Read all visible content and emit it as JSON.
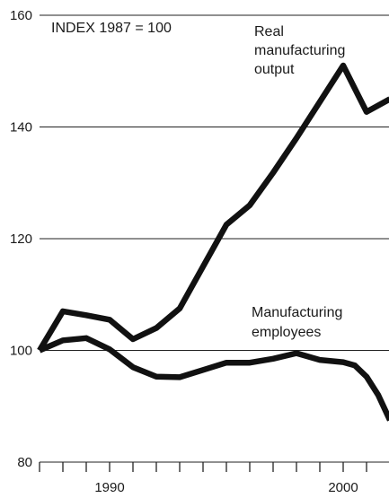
{
  "chart_data": {
    "type": "line",
    "title": "",
    "index_note": "INDEX 1987 = 100",
    "xlabel": "",
    "ylabel": "",
    "xlim": [
      1987,
      2002
    ],
    "ylim": [
      80,
      160
    ],
    "y_ticks": [
      80,
      100,
      120,
      140,
      160
    ],
    "x_tick_labels": [
      1990,
      2000
    ],
    "x_minor_ticks": [
      1987,
      1988,
      1989,
      1990,
      1991,
      1992,
      1993,
      1994,
      1995,
      1996,
      1997,
      1998,
      1999,
      2000,
      2001,
      2002
    ],
    "grid": true,
    "series": [
      {
        "name": "Real manufacturing output",
        "label_lines": [
          "Real",
          "manufacturing",
          "output"
        ],
        "x": [
          1987,
          1988,
          1989,
          1990,
          1991,
          1992,
          1993,
          1994,
          1995,
          1996,
          1997,
          1998,
          1999,
          2000,
          2001,
          2002
        ],
        "values": [
          100,
          107,
          106.3,
          105.5,
          102,
          104,
          107.5,
          115,
          122.5,
          126,
          131.8,
          138,
          144.5,
          151,
          142.7,
          145
        ]
      },
      {
        "name": "Manufacturing employees",
        "label_lines": [
          "Manufacturing",
          "employees"
        ],
        "x": [
          1987,
          1988,
          1989,
          1990,
          1991,
          1992,
          1993,
          1994,
          1995,
          1996,
          1997,
          1998,
          1999,
          2000,
          2000.5,
          2001,
          2001.5,
          2002
        ],
        "values": [
          100,
          101.8,
          102.2,
          100.2,
          97,
          95.3,
          95.2,
          96.5,
          97.8,
          97.8,
          98.5,
          99.5,
          98.3,
          97.9,
          97.3,
          95.3,
          92,
          87.5
        ]
      }
    ]
  }
}
